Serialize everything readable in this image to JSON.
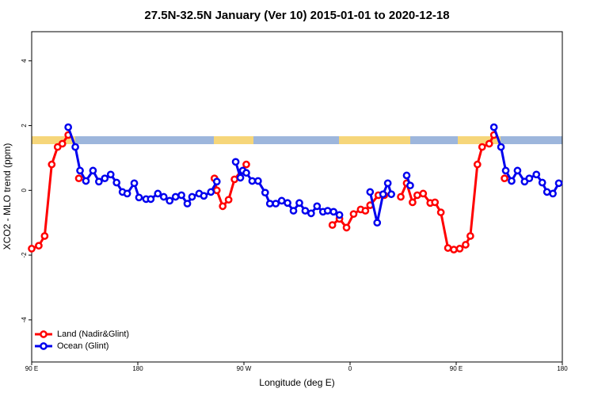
{
  "chart_data": {
    "type": "line",
    "title": "27.5N-32.5N January (Ver 10)   2015-01-01 to 2020-12-18",
    "x_label": "Longitude (deg E)",
    "y_label": "XCO2 - MLO trend (ppm)",
    "xlim": [
      90,
      540
    ],
    "xticks": [
      {
        "value": 90,
        "label": "90 E"
      },
      180,
      {
        "value": 270,
        "label": "90 W"
      },
      {
        "value": 360,
        "label": "0"
      },
      {
        "value": 450,
        "label": "90 E"
      },
      {
        "value": 540,
        "label": "180"
      }
    ],
    "ylim": [
      -5.3,
      4.9
    ],
    "yticks": [
      -4,
      -2,
      0,
      2,
      4
    ],
    "legend": "bottom-left",
    "series": [
      {
        "name": "Land (Nadir&Glint)",
        "color": "#ff0000",
        "x": [
          90,
          96,
          101,
          107,
          112,
          116,
          121,
          null,
          130,
          null,
          245,
          247,
          252,
          257,
          262,
          272,
          null,
          345,
          351,
          357,
          363,
          369,
          373,
          377,
          384,
          389,
          null,
          403,
          408,
          413,
          417,
          422,
          428,
          432,
          437,
          443,
          448,
          453,
          458,
          462,
          468,
          472,
          478,
          482,
          null,
          491
        ],
        "values": [
          -1.8,
          -1.71,
          -1.41,
          0.8,
          1.34,
          1.44,
          1.71,
          null,
          0.37,
          null,
          0.37,
          0,
          -0.49,
          -0.29,
          0.34,
          0.8,
          null,
          -1.07,
          -0.88,
          -1.15,
          -0.73,
          -0.59,
          -0.63,
          -0.46,
          -0.15,
          -0.15,
          null,
          -0.2,
          0.22,
          -0.37,
          -0.15,
          -0.1,
          -0.39,
          -0.37,
          -0.68,
          -1.78,
          -1.83,
          -1.8,
          -1.68,
          -1.41,
          0.8,
          1.34,
          1.44,
          1.71,
          null,
          0.37
        ]
      },
      {
        "name": "Ocean (Glint)",
        "color": "#0000ee",
        "x": [
          121,
          127,
          131,
          136,
          142,
          147,
          152,
          157,
          162,
          167,
          171,
          177,
          181,
          187,
          191,
          197,
          202,
          207,
          212,
          217,
          222,
          226,
          232,
          236,
          242,
          247,
          null,
          263,
          267,
          269,
          272,
          277,
          282,
          288,
          292,
          297,
          302,
          307,
          312,
          317,
          322,
          327,
          332,
          337,
          341,
          346,
          351,
          null,
          377,
          383,
          388,
          392,
          395,
          null,
          408,
          411,
          null,
          482,
          488,
          492,
          497,
          502,
          508,
          512,
          518,
          523,
          527,
          532,
          537
        ],
        "values": [
          1.95,
          1.34,
          0.61,
          0.29,
          0.61,
          0.27,
          0.37,
          0.49,
          0.24,
          -0.05,
          -0.1,
          0.22,
          -0.22,
          -0.27,
          -0.27,
          -0.1,
          -0.2,
          -0.32,
          -0.2,
          -0.15,
          -0.41,
          -0.2,
          -0.1,
          -0.17,
          -0.05,
          0.27,
          null,
          0.88,
          0.39,
          0.61,
          0.54,
          0.29,
          0.29,
          -0.07,
          -0.41,
          -0.41,
          -0.32,
          -0.39,
          -0.63,
          -0.39,
          -0.63,
          -0.71,
          -0.49,
          -0.66,
          -0.63,
          -0.66,
          -0.76,
          null,
          -0.05,
          -1.0,
          -0.12,
          0.22,
          -0.12,
          null,
          0.46,
          0.15,
          null,
          1.95,
          1.34,
          0.61,
          0.29,
          0.61,
          0.27,
          0.37,
          0.49,
          0.24,
          -0.05,
          -0.1,
          0.22
        ]
      }
    ]
  }
}
